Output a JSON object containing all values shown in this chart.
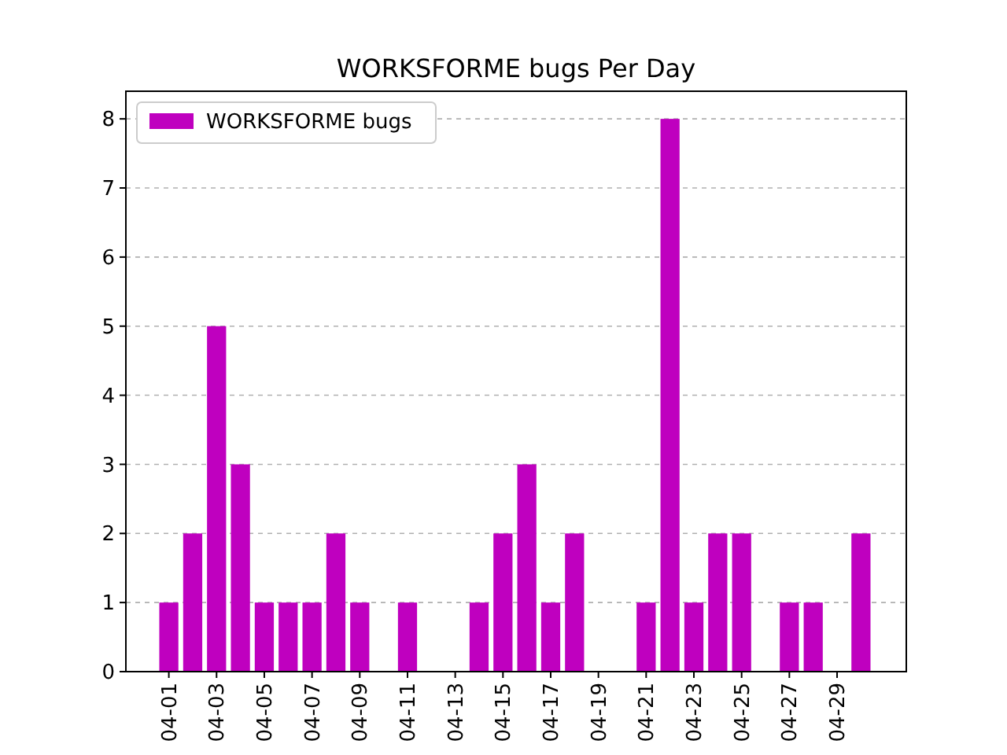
{
  "chart_data": {
    "type": "bar",
    "title": "WORKSFORME bugs Per Day",
    "categories": [
      "04-01",
      null,
      "04-03",
      null,
      "04-05",
      null,
      "04-07",
      null,
      "04-09",
      null,
      "04-11",
      null,
      "04-13",
      null,
      "04-15",
      null,
      "04-17",
      null,
      "04-19",
      null,
      "04-21",
      null,
      "04-23",
      null,
      "04-25",
      null,
      "04-27",
      null,
      "04-29",
      null
    ],
    "series": [
      {
        "name": "WORKSFORME bugs",
        "color": "#bf00bf",
        "values": [
          1,
          2,
          5,
          3,
          1,
          1,
          1,
          2,
          1,
          0,
          1,
          0,
          0,
          1,
          2,
          3,
          1,
          2,
          0,
          0,
          1,
          8,
          1,
          2,
          2,
          0,
          1,
          1,
          0,
          2
        ]
      }
    ],
    "ylim": [
      0,
      8.4
    ],
    "yticks": [
      0,
      1,
      2,
      3,
      4,
      5,
      6,
      7,
      8
    ],
    "grid": "y",
    "legend": "top left"
  }
}
